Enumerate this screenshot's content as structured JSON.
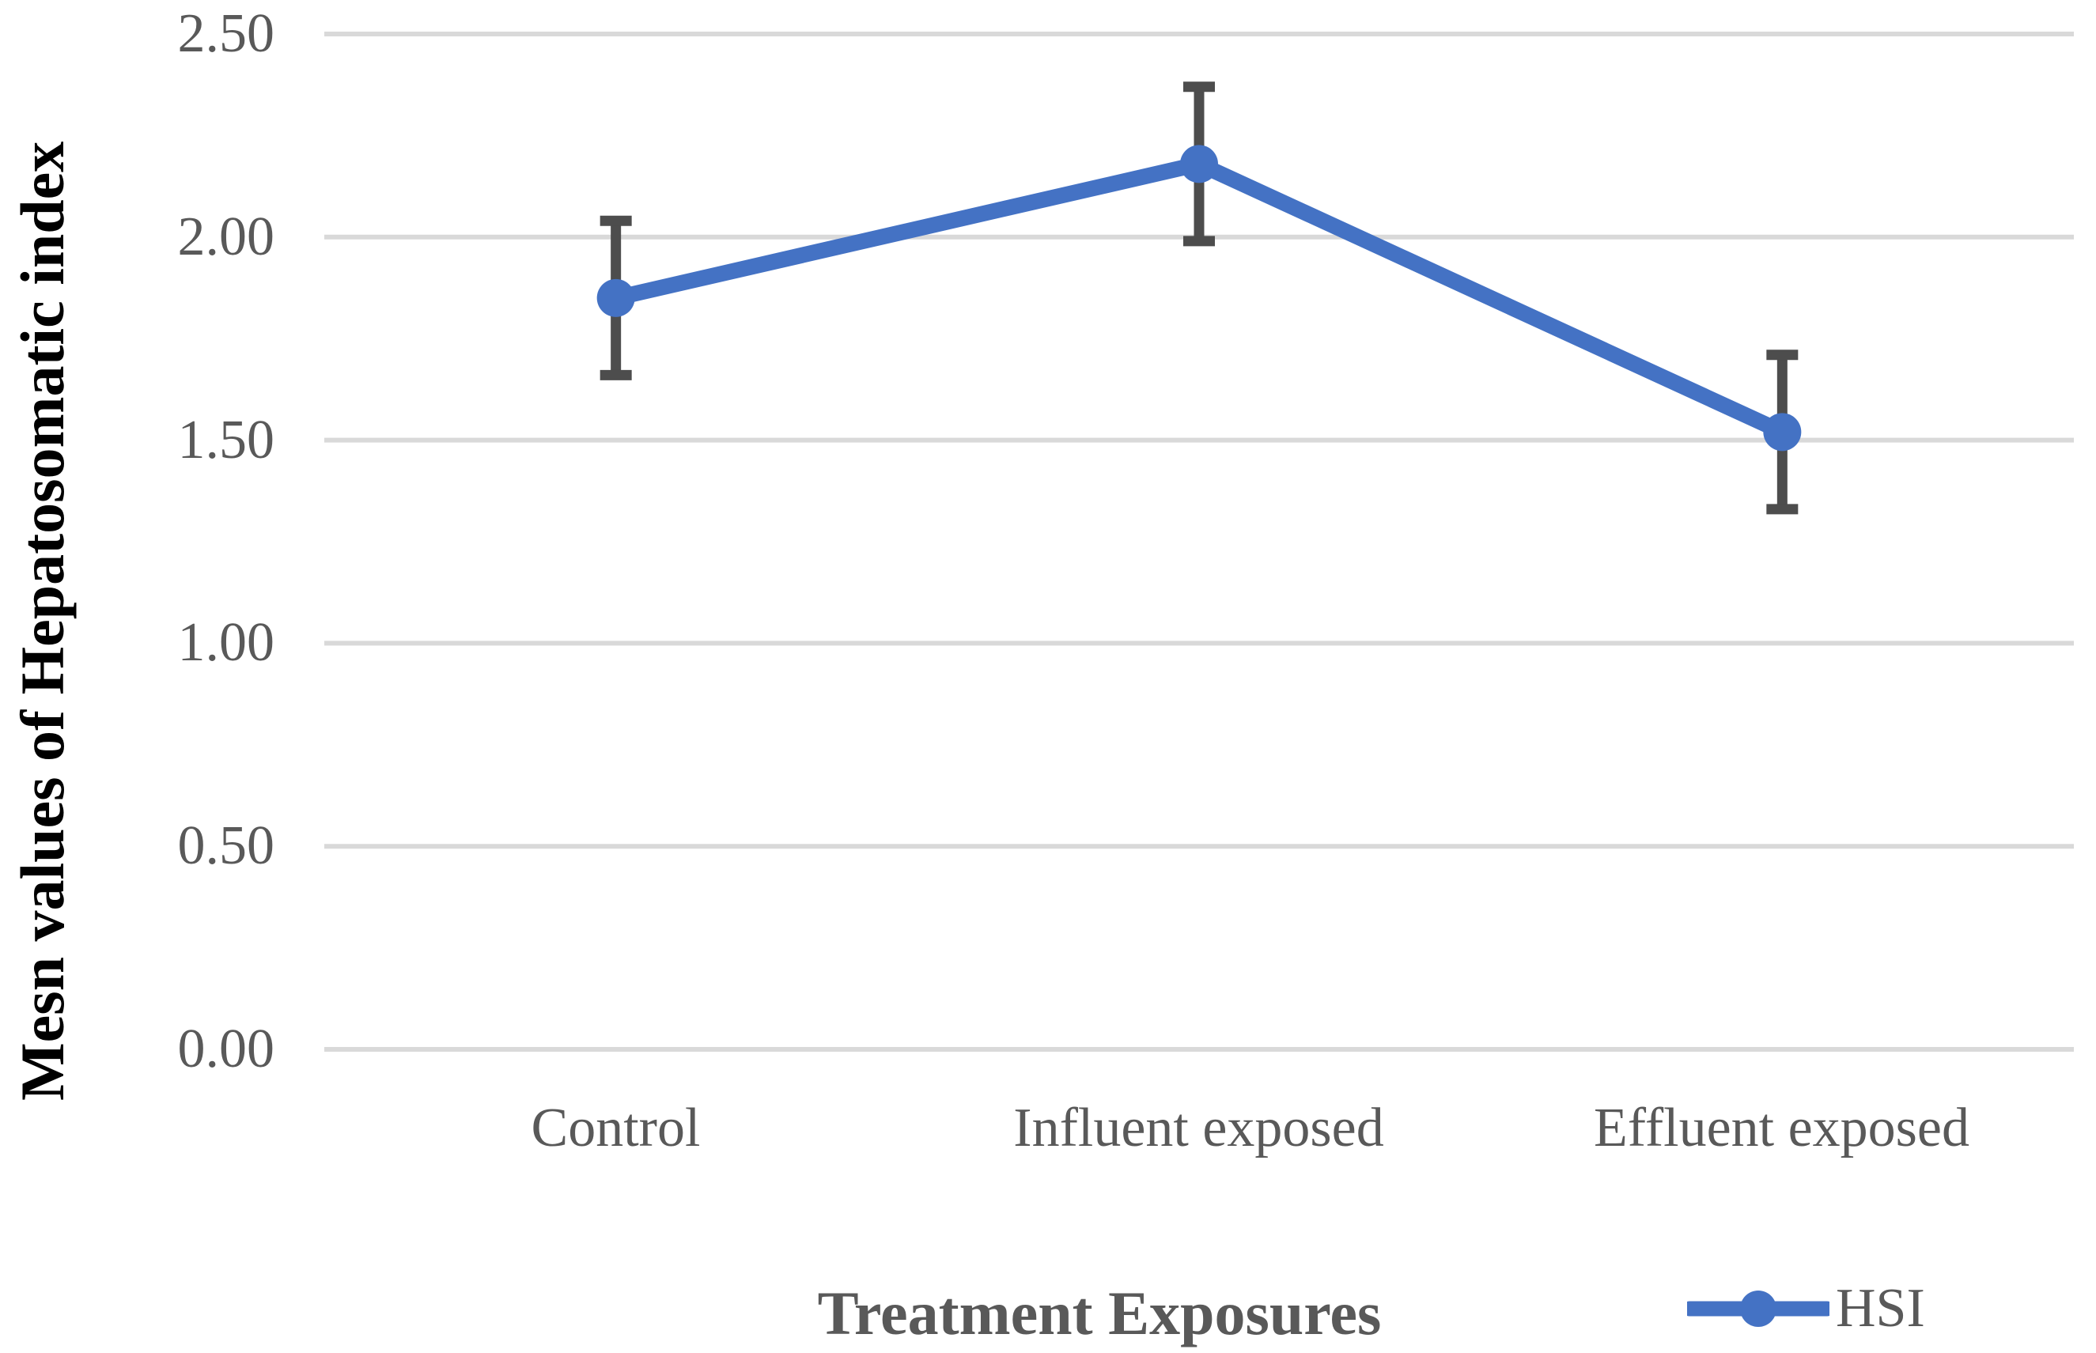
{
  "chart_data": {
    "type": "line",
    "title": "",
    "categories": [
      "Control",
      "Influent exposed",
      "Effluent exposed"
    ],
    "series": [
      {
        "name": "HSI",
        "values": [
          1.85,
          2.18,
          1.52
        ],
        "errors_plus": [
          0.19,
          0.19,
          0.19
        ],
        "errors_minus": [
          0.19,
          0.19,
          0.19
        ],
        "marker": "circle"
      }
    ],
    "xlabel": "Treatment Exposures",
    "ylabel": "Mesn values of Hepatosomatic index",
    "ylim": [
      0,
      2.5
    ],
    "ytick_labels": [
      "2.50",
      "2.00",
      "1.50",
      "1.00",
      "0.50",
      "0.00"
    ],
    "ytick_values": [
      2.5,
      2.0,
      1.5,
      1.0,
      0.5,
      0.0
    ],
    "grid": "horizontal",
    "legend": {
      "position": "bottom-right",
      "entries": [
        "HSI"
      ]
    },
    "colors": {
      "series": "#4472C4",
      "error_bar": "#4D4D4D",
      "gridline": "#D9D9D9",
      "tick_text": "#595959",
      "category_text": "#595959",
      "y_axis_title": "#000000",
      "x_axis_title": "#595959",
      "legend_text": "#595959"
    }
  }
}
